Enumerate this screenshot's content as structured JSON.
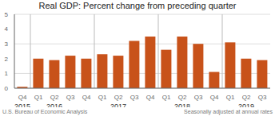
{
  "chart_data": {
    "type": "bar",
    "title": "Real GDP:  Percent change from preceding quarter",
    "categories": [
      "Q4",
      "Q1",
      "Q2",
      "Q3",
      "Q4",
      "Q1",
      "Q2",
      "Q3",
      "Q4",
      "Q1",
      "Q2",
      "Q3",
      "Q4",
      "Q1",
      "Q2",
      "Q3"
    ],
    "values": [
      0.1,
      2.0,
      1.9,
      2.2,
      2.0,
      2.3,
      2.2,
      3.2,
      3.5,
      2.6,
      3.5,
      3.0,
      1.1,
      3.1,
      2.0,
      1.9
    ],
    "color": "#C8521A",
    "ylim": [
      0,
      5
    ],
    "yticks": [
      0,
      1,
      2,
      3,
      4,
      5
    ],
    "grid": true,
    "annotations": [
      {
        "text": "2015",
        "x": 0
      },
      {
        "text": "2016",
        "x": 2
      },
      {
        "text": "2017",
        "x": 6
      },
      {
        "text": "2018",
        "x": 10
      },
      {
        "text": "2019",
        "x": 14
      }
    ],
    "dividers": [
      0.5,
      4.5,
      8.5,
      12.5
    ],
    "footer": [
      "U.S. Bureau of Economic Analysis",
      "Seasonally adjusted at annual rates"
    ]
  }
}
